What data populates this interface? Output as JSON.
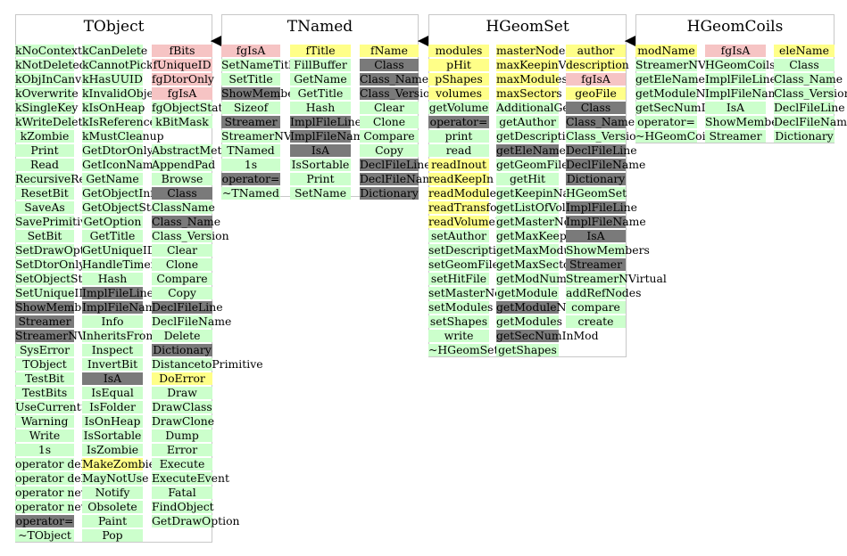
{
  "boxes": [
    {
      "name": "TObject",
      "columns": [
        [
          [
            "kNoContextMenu",
            "g"
          ],
          [
            "kNotDeleted",
            "g"
          ],
          [
            "kObjInCanvas",
            "g"
          ],
          [
            "kOverwrite",
            "g"
          ],
          [
            "kSingleKey",
            "g"
          ],
          [
            "kWriteDelete",
            "g"
          ],
          [
            "kZombie",
            "g"
          ],
          [
            "Print",
            "g"
          ],
          [
            "Read",
            "g"
          ],
          [
            "RecursiveRemove",
            "g"
          ],
          [
            "ResetBit",
            "g"
          ],
          [
            "SaveAs",
            "g"
          ],
          [
            "SavePrimitive",
            "g"
          ],
          [
            "SetBit",
            "g"
          ],
          [
            "SetDrawOption",
            "g"
          ],
          [
            "SetDtorOnly",
            "g"
          ],
          [
            "SetObjectStat",
            "g"
          ],
          [
            "SetUniqueID",
            "g"
          ],
          [
            "ShowMembers",
            "d"
          ],
          [
            "Streamer",
            "d"
          ],
          [
            "StreamerNVirtual",
            "d"
          ],
          [
            "SysError",
            "g"
          ],
          [
            "TObject",
            "g"
          ],
          [
            "TestBit",
            "g"
          ],
          [
            "TestBits",
            "g"
          ],
          [
            "UseCurrentStyle",
            "g"
          ],
          [
            "Warning",
            "g"
          ],
          [
            "Write",
            "g"
          ],
          [
            "1s",
            "g"
          ],
          [
            "operator delete",
            "g"
          ],
          [
            "operator delete[]",
            "g"
          ],
          [
            "operator new",
            "g"
          ],
          [
            "operator new[]",
            "g"
          ],
          [
            "operator=",
            "d"
          ],
          [
            "~TObject",
            "g"
          ]
        ],
        [
          [
            "kCanDelete",
            "g"
          ],
          [
            "kCannotPick",
            "g"
          ],
          [
            "kHasUUID",
            "g"
          ],
          [
            "kInvalidObject",
            "g"
          ],
          [
            "kIsOnHeap",
            "g"
          ],
          [
            "kIsReferenced",
            "g"
          ],
          [
            "kMustCleanup",
            "g"
          ],
          [
            "GetDtorOnly",
            "g"
          ],
          [
            "GetIconName",
            "g"
          ],
          [
            "GetName",
            "g"
          ],
          [
            "GetObjectInfo",
            "g"
          ],
          [
            "GetObjectStat",
            "g"
          ],
          [
            "GetOption",
            "g"
          ],
          [
            "GetTitle",
            "g"
          ],
          [
            "GetUniqueID",
            "g"
          ],
          [
            "HandleTimer",
            "g"
          ],
          [
            "Hash",
            "g"
          ],
          [
            "ImplFileLine",
            "d"
          ],
          [
            "ImplFileName",
            "d"
          ],
          [
            "Info",
            "g"
          ],
          [
            "InheritsFrom",
            "g"
          ],
          [
            "Inspect",
            "g"
          ],
          [
            "InvertBit",
            "g"
          ],
          [
            "IsA",
            "d"
          ],
          [
            "IsEqual",
            "g"
          ],
          [
            "IsFolder",
            "g"
          ],
          [
            "IsOnHeap",
            "g"
          ],
          [
            "IsSortable",
            "g"
          ],
          [
            "IsZombie",
            "g"
          ],
          [
            "MakeZombie",
            "y"
          ],
          [
            "MayNotUse",
            "g"
          ],
          [
            "Notify",
            "g"
          ],
          [
            "Obsolete",
            "g"
          ],
          [
            "Paint",
            "g"
          ],
          [
            "Pop",
            "g"
          ]
        ],
        [
          [
            "fBits",
            "r"
          ],
          [
            "fUniqueID",
            "r"
          ],
          [
            "fgDtorOnly",
            "r"
          ],
          [
            "fgIsA",
            "r"
          ],
          [
            "fgObjectStat",
            "g"
          ],
          [
            "kBitMask",
            "g"
          ],
          [
            "",
            "n"
          ],
          [
            "AbstractMethod",
            "g"
          ],
          [
            "AppendPad",
            "g"
          ],
          [
            "Browse",
            "g"
          ],
          [
            "Class",
            "d"
          ],
          [
            "ClassName",
            "g"
          ],
          [
            "Class_Name",
            "d"
          ],
          [
            "Class_Version",
            "g"
          ],
          [
            "Clear",
            "g"
          ],
          [
            "Clone",
            "g"
          ],
          [
            "Compare",
            "g"
          ],
          [
            "Copy",
            "g"
          ],
          [
            "DeclFileLine",
            "d"
          ],
          [
            "DeclFileName",
            "g"
          ],
          [
            "Delete",
            "g"
          ],
          [
            "Dictionary",
            "d"
          ],
          [
            "DistancetoPrimitive",
            "g"
          ],
          [
            "DoError",
            "y"
          ],
          [
            "Draw",
            "g"
          ],
          [
            "DrawClass",
            "g"
          ],
          [
            "DrawClone",
            "g"
          ],
          [
            "Dump",
            "g"
          ],
          [
            "Error",
            "g"
          ],
          [
            "Execute",
            "g"
          ],
          [
            "ExecuteEvent",
            "g"
          ],
          [
            "Fatal",
            "g"
          ],
          [
            "FindObject",
            "g"
          ],
          [
            "GetDrawOption",
            "g"
          ]
        ]
      ]
    },
    {
      "name": "TNamed",
      "columns": [
        [
          [
            "fgIsA",
            "r"
          ],
          [
            "SetNameTitle",
            "g"
          ],
          [
            "SetTitle",
            "g"
          ],
          [
            "ShowMembers",
            "d"
          ],
          [
            "Sizeof",
            "g"
          ],
          [
            "Streamer",
            "d"
          ],
          [
            "StreamerNVirtual",
            "g"
          ],
          [
            "TNamed",
            "g"
          ],
          [
            "1s",
            "g"
          ],
          [
            "operator=",
            "d"
          ],
          [
            "~TNamed",
            "g"
          ]
        ],
        [
          [
            "fTitle",
            "y"
          ],
          [
            "FillBuffer",
            "g"
          ],
          [
            "GetName",
            "g"
          ],
          [
            "GetTitle",
            "g"
          ],
          [
            "Hash",
            "g"
          ],
          [
            "ImplFileLine",
            "d"
          ],
          [
            "ImplFileName",
            "d"
          ],
          [
            "IsA",
            "d"
          ],
          [
            "IsSortable",
            "g"
          ],
          [
            "Print",
            "g"
          ],
          [
            "SetName",
            "g"
          ]
        ],
        [
          [
            "fName",
            "y"
          ],
          [
            "Class",
            "d"
          ],
          [
            "Class_Name",
            "d"
          ],
          [
            "Class_Version",
            "d"
          ],
          [
            "Clear",
            "g"
          ],
          [
            "Clone",
            "g"
          ],
          [
            "Compare",
            "g"
          ],
          [
            "Copy",
            "g"
          ],
          [
            "DeclFileLine",
            "d"
          ],
          [
            "DeclFileName",
            "d"
          ],
          [
            "Dictionary",
            "d"
          ]
        ]
      ]
    },
    {
      "name": "HGeomSet",
      "columns": [
        [
          [
            "modules",
            "y"
          ],
          [
            "pHit",
            "y"
          ],
          [
            "pShapes",
            "y"
          ],
          [
            "volumes",
            "y"
          ],
          [
            "getVolume",
            "g"
          ],
          [
            "operator=",
            "d"
          ],
          [
            "print",
            "g"
          ],
          [
            "read",
            "g"
          ],
          [
            "readInout",
            "y"
          ],
          [
            "readKeepIn",
            "y"
          ],
          [
            "readModule",
            "y"
          ],
          [
            "readTransform",
            "y"
          ],
          [
            "readVolumeParams",
            "y"
          ],
          [
            "setAuthor",
            "g"
          ],
          [
            "setDescription",
            "g"
          ],
          [
            "setGeomFile",
            "g"
          ],
          [
            "setHitFile",
            "g"
          ],
          [
            "setMasterNodes",
            "g"
          ],
          [
            "setModules",
            "g"
          ],
          [
            "setShapes",
            "g"
          ],
          [
            "write",
            "g"
          ],
          [
            "~HGeomSet",
            "g"
          ]
        ],
        [
          [
            "masterNodes",
            "y"
          ],
          [
            "maxKeepinVolumes",
            "y"
          ],
          [
            "maxModules",
            "y"
          ],
          [
            "maxSectors",
            "y"
          ],
          [
            "AdditionalGeometry",
            "g"
          ],
          [
            "getAuthor",
            "g"
          ],
          [
            "getDescription",
            "g"
          ],
          [
            "getEleName",
            "d"
          ],
          [
            "getGeomFile",
            "g"
          ],
          [
            "getHit",
            "g"
          ],
          [
            "getKeepinName",
            "g"
          ],
          [
            "getListOfVolumes",
            "g"
          ],
          [
            "getMasterNodes",
            "g"
          ],
          [
            "getMaxKeepinVolumes",
            "g"
          ],
          [
            "getMaxModules",
            "g"
          ],
          [
            "getMaxSectors",
            "g"
          ],
          [
            "getModNumInMod",
            "g"
          ],
          [
            "getModule",
            "g"
          ],
          [
            "getModuleName",
            "d"
          ],
          [
            "getModules",
            "g"
          ],
          [
            "getSecNumInMod",
            "d"
          ],
          [
            "getShapes",
            "g"
          ]
        ],
        [
          [
            "author",
            "y"
          ],
          [
            "description",
            "y"
          ],
          [
            "fgIsA",
            "r"
          ],
          [
            "geoFile",
            "y"
          ],
          [
            "Class",
            "d"
          ],
          [
            "Class_Name",
            "d"
          ],
          [
            "Class_Version",
            "g"
          ],
          [
            "DeclFileLine",
            "d"
          ],
          [
            "DeclFileName",
            "d"
          ],
          [
            "Dictionary",
            "d"
          ],
          [
            "HGeomSet",
            "g"
          ],
          [
            "ImplFileLine",
            "d"
          ],
          [
            "ImplFileName",
            "d"
          ],
          [
            "IsA",
            "d"
          ],
          [
            "ShowMembers",
            "g"
          ],
          [
            "Streamer",
            "d"
          ],
          [
            "StreamerNVirtual",
            "g"
          ],
          [
            "addRefNodes",
            "g"
          ],
          [
            "compare",
            "g"
          ],
          [
            "create",
            "g"
          ]
        ]
      ]
    },
    {
      "name": "HGeomCoils",
      "columns": [
        [
          [
            "modName",
            "y"
          ],
          [
            "StreamerNVirtual",
            "g"
          ],
          [
            "getEleName",
            "g"
          ],
          [
            "getModuleName",
            "g"
          ],
          [
            "getSecNumInMod",
            "g"
          ],
          [
            "operator=",
            "g"
          ],
          [
            "~HGeomCoils",
            "g"
          ]
        ],
        [
          [
            "fgIsA",
            "r"
          ],
          [
            "HGeomCoils",
            "g"
          ],
          [
            "ImplFileLine",
            "g"
          ],
          [
            "ImplFileName",
            "g"
          ],
          [
            "IsA",
            "g"
          ],
          [
            "ShowMembers",
            "g"
          ],
          [
            "Streamer",
            "g"
          ]
        ],
        [
          [
            "eleName",
            "y"
          ],
          [
            "Class",
            "g"
          ],
          [
            "Class_Name",
            "g"
          ],
          [
            "Class_Version",
            "g"
          ],
          [
            "DeclFileLine",
            "g"
          ],
          [
            "DeclFileName",
            "g"
          ],
          [
            "Dictionary",
            "g"
          ]
        ]
      ]
    }
  ]
}
